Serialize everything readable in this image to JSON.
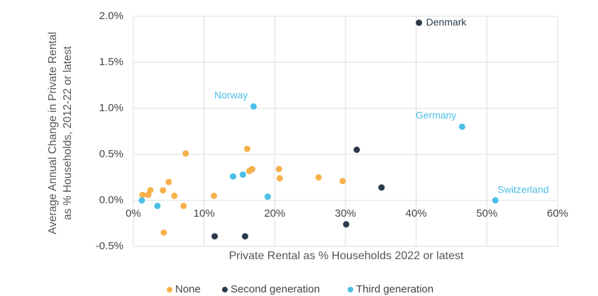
{
  "chart_data": {
    "type": "scatter",
    "x_label": "Private Rental as % Households 2022 or latest",
    "y_label": "Average Annual Change in Private Rental as % Households, 2012-22 or latest",
    "xlim": [
      0,
      60
    ],
    "xticks": [
      {
        "value": 0,
        "label": "0%"
      },
      {
        "value": 10,
        "label": "10%"
      },
      {
        "value": 20,
        "label": "20%"
      },
      {
        "value": 30,
        "label": "30%"
      },
      {
        "value": 40,
        "label": "40%"
      },
      {
        "value": 50,
        "label": "50%"
      },
      {
        "value": 60,
        "label": "60%"
      }
    ],
    "ylim": [
      -0.5,
      2.0
    ],
    "yticks": [
      {
        "value": -0.5,
        "label": "-0.5%"
      },
      {
        "value": 0,
        "label": "0.0%"
      },
      {
        "value": 0.5,
        "label": "0.5%"
      },
      {
        "value": 1.0,
        "label": "1.0%"
      },
      {
        "value": 1.5,
        "label": "1.5%"
      },
      {
        "value": 2.0,
        "label": "2.0%"
      }
    ],
    "grid": true,
    "legend": "bottom",
    "series": [
      {
        "name": "None",
        "color": "#f7b04a",
        "x": [
          1.3,
          2.1,
          2.4,
          4.2,
          5.0,
          5.8,
          4.3,
          7.4,
          7.1,
          11.4,
          16.1,
          16.4,
          16.8,
          20.6,
          20.7,
          26.2,
          29.6
        ],
        "values": [
          0.06,
          0.06,
          0.11,
          0.11,
          0.2,
          0.05,
          -0.35,
          0.51,
          -0.06,
          0.05,
          0.56,
          0.32,
          0.34,
          0.34,
          0.24,
          0.25,
          0.21
        ]
      },
      {
        "name": "Second generation",
        "color": "#2b3a4a",
        "x": [
          40.4,
          31.6,
          35.1,
          30.1,
          11.5,
          15.8
        ],
        "values": [
          1.93,
          0.55,
          0.14,
          -0.26,
          -0.39,
          -0.39
        ],
        "labels": [
          "Denmark",
          null,
          null,
          null,
          null,
          null
        ]
      },
      {
        "name": "Third generation",
        "color": "#4bbfe6",
        "x": [
          17.0,
          46.5,
          51.2,
          1.2,
          3.4,
          14.1,
          15.5,
          19.0
        ],
        "values": [
          1.02,
          0.8,
          0.0,
          0.0,
          -0.06,
          0.26,
          0.28,
          0.04
        ],
        "labels": [
          "Norway",
          "Germany",
          "Switzerland",
          null,
          null,
          null,
          null,
          null
        ]
      }
    ]
  }
}
